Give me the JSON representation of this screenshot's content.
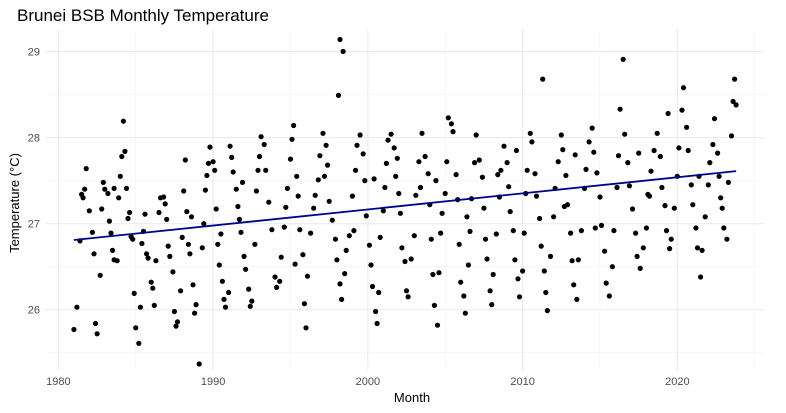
{
  "chart_data": {
    "type": "scatter",
    "title": "Brunei BSB Monthly Temperature",
    "xlabel": "Month",
    "ylabel": "Temperature (°C)",
    "xlim": [
      1979.2,
      2025.6
    ],
    "ylim": [
      25.3,
      29.25
    ],
    "x_ticks": [
      1980,
      1990,
      2000,
      2010,
      2020
    ],
    "x_tick_labels": [
      "1980",
      "1990",
      "2000",
      "2010",
      "2020"
    ],
    "y_ticks": [
      26,
      27,
      28,
      29
    ],
    "y_tick_labels": [
      "26",
      "27",
      "28",
      "29"
    ],
    "grid": true,
    "legend": "none",
    "trend_line": {
      "x": [
        1981.0,
        2023.8
      ],
      "y": [
        26.81,
        27.61
      ],
      "color": "#00008b"
    },
    "point_color": "#000000",
    "points": [
      [
        1981.0,
        25.77
      ],
      [
        1981.2,
        26.03
      ],
      [
        1981.4,
        26.8
      ],
      [
        1981.6,
        27.3
      ],
      [
        1981.7,
        27.4
      ],
      [
        1981.8,
        27.64
      ],
      [
        1982.0,
        27.15
      ],
      [
        1982.2,
        26.9
      ],
      [
        1982.3,
        26.65
      ],
      [
        1982.4,
        25.84
      ],
      [
        1982.5,
        25.72
      ],
      [
        1982.7,
        26.4
      ],
      [
        1982.8,
        27.17
      ],
      [
        1982.9,
        27.48
      ],
      [
        1983.0,
        27.4
      ],
      [
        1983.2,
        27.35
      ],
      [
        1983.3,
        27.03
      ],
      [
        1983.4,
        26.89
      ],
      [
        1983.5,
        26.69
      ],
      [
        1983.6,
        26.58
      ],
      [
        1983.8,
        26.57
      ],
      [
        1983.9,
        27.3
      ],
      [
        1984.0,
        27.55
      ],
      [
        1984.1,
        27.78
      ],
      [
        1984.2,
        28.19
      ],
      [
        1984.3,
        27.84
      ],
      [
        1984.4,
        27.41
      ],
      [
        1984.6,
        27.13
      ],
      [
        1984.7,
        26.85
      ],
      [
        1984.8,
        26.82
      ],
      [
        1984.9,
        26.19
      ],
      [
        1985.0,
        25.79
      ],
      [
        1985.2,
        25.61
      ],
      [
        1985.3,
        26.03
      ],
      [
        1985.4,
        26.77
      ],
      [
        1985.5,
        26.91
      ],
      [
        1985.6,
        27.11
      ],
      [
        1985.7,
        26.65
      ],
      [
        1985.8,
        26.6
      ],
      [
        1986.0,
        26.32
      ],
      [
        1986.1,
        26.25
      ],
      [
        1986.2,
        26.05
      ],
      [
        1986.3,
        26.57
      ],
      [
        1986.5,
        27.13
      ],
      [
        1986.6,
        27.3
      ],
      [
        1986.8,
        27.31
      ],
      [
        1987.0,
        27.05
      ],
      [
        1987.1,
        26.74
      ],
      [
        1987.2,
        26.62
      ],
      [
        1987.4,
        26.44
      ],
      [
        1987.5,
        25.98
      ],
      [
        1987.6,
        25.81
      ],
      [
        1987.7,
        25.86
      ],
      [
        1987.9,
        26.22
      ],
      [
        1988.0,
        26.84
      ],
      [
        1988.1,
        27.38
      ],
      [
        1988.2,
        27.74
      ],
      [
        1988.3,
        27.14
      ],
      [
        1988.4,
        26.76
      ],
      [
        1988.5,
        26.65
      ],
      [
        1988.7,
        26.29
      ],
      [
        1988.8,
        25.96
      ],
      [
        1988.9,
        26.06
      ],
      [
        1989.1,
        25.37
      ],
      [
        1989.3,
        26.72
      ],
      [
        1989.4,
        27.0
      ],
      [
        1989.5,
        27.39
      ],
      [
        1989.6,
        27.56
      ],
      [
        1989.7,
        27.7
      ],
      [
        1989.8,
        27.89
      ],
      [
        1990.0,
        27.72
      ],
      [
        1990.1,
        27.62
      ],
      [
        1990.2,
        27.17
      ],
      [
        1990.3,
        26.76
      ],
      [
        1990.4,
        26.52
      ],
      [
        1990.6,
        26.33
      ],
      [
        1990.7,
        26.12
      ],
      [
        1990.8,
        26.03
      ],
      [
        1991.0,
        26.2
      ],
      [
        1991.1,
        27.9
      ],
      [
        1991.2,
        27.77
      ],
      [
        1991.3,
        27.6
      ],
      [
        1991.5,
        27.4
      ],
      [
        1991.6,
        27.2
      ],
      [
        1991.7,
        27.05
      ],
      [
        1991.8,
        26.9
      ],
      [
        1992.0,
        26.62
      ],
      [
        1992.1,
        26.47
      ],
      [
        1992.3,
        26.24
      ],
      [
        1992.4,
        26.04
      ],
      [
        1992.5,
        26.1
      ],
      [
        1992.7,
        26.76
      ],
      [
        1992.8,
        27.38
      ],
      [
        1992.9,
        27.62
      ],
      [
        1993.0,
        27.78
      ],
      [
        1993.1,
        28.01
      ],
      [
        1993.3,
        27.92
      ],
      [
        1993.4,
        27.62
      ],
      [
        1993.6,
        27.25
      ],
      [
        1993.8,
        26.93
      ],
      [
        1994.0,
        26.38
      ],
      [
        1994.1,
        26.26
      ],
      [
        1994.3,
        26.33
      ],
      [
        1994.4,
        26.61
      ],
      [
        1994.6,
        26.96
      ],
      [
        1994.8,
        27.41
      ],
      [
        1995.0,
        27.75
      ],
      [
        1995.1,
        27.98
      ],
      [
        1995.2,
        28.14
      ],
      [
        1995.4,
        27.55
      ],
      [
        1995.5,
        27.32
      ],
      [
        1995.6,
        26.93
      ],
      [
        1995.8,
        26.64
      ],
      [
        1995.9,
        26.07
      ],
      [
        1996.0,
        25.79
      ],
      [
        1996.1,
        26.39
      ],
      [
        1996.3,
        26.89
      ],
      [
        1996.5,
        27.18
      ],
      [
        1996.6,
        27.33
      ],
      [
        1996.8,
        27.51
      ],
      [
        1996.9,
        27.79
      ],
      [
        1997.1,
        28.05
      ],
      [
        1997.3,
        27.91
      ],
      [
        1997.4,
        27.68
      ],
      [
        1997.5,
        27.26
      ],
      [
        1997.7,
        27.04
      ],
      [
        1997.9,
        26.82
      ],
      [
        1998.0,
        26.58
      ],
      [
        1998.2,
        26.3
      ],
      [
        1998.3,
        26.12
      ],
      [
        1998.5,
        26.42
      ],
      [
        1998.6,
        26.69
      ],
      [
        1998.8,
        26.86
      ],
      [
        1999.0,
        27.32
      ],
      [
        1999.2,
        27.62
      ],
      [
        1999.3,
        27.91
      ],
      [
        1999.5,
        28.03
      ],
      [
        1999.7,
        27.81
      ],
      [
        1999.8,
        27.5
      ],
      [
        1999.9,
        27.09
      ],
      [
        2000.1,
        26.75
      ],
      [
        2000.2,
        26.52
      ],
      [
        2000.3,
        26.27
      ],
      [
        2000.5,
        25.98
      ],
      [
        2000.6,
        25.84
      ],
      [
        2000.7,
        26.2
      ],
      [
        2000.8,
        26.84
      ],
      [
        2001.0,
        27.15
      ],
      [
        2001.1,
        27.42
      ],
      [
        2001.2,
        27.7
      ],
      [
        2001.3,
        27.97
      ],
      [
        2001.5,
        28.04
      ],
      [
        2001.7,
        27.88
      ],
      [
        2001.8,
        27.55
      ],
      [
        2002.0,
        27.35
      ],
      [
        2002.1,
        27.12
      ],
      [
        2002.2,
        26.72
      ],
      [
        2002.4,
        26.56
      ],
      [
        2002.5,
        26.22
      ],
      [
        2002.6,
        26.15
      ],
      [
        2002.8,
        26.59
      ],
      [
        2003.0,
        26.86
      ],
      [
        2003.1,
        27.33
      ],
      [
        2003.3,
        27.72
      ],
      [
        2003.5,
        28.05
      ],
      [
        2003.7,
        27.78
      ],
      [
        2003.9,
        27.58
      ],
      [
        2004.0,
        27.22
      ],
      [
        2004.1,
        26.82
      ],
      [
        2004.2,
        26.41
      ],
      [
        2004.3,
        26.05
      ],
      [
        2004.5,
        25.82
      ],
      [
        2004.6,
        26.43
      ],
      [
        2004.7,
        26.89
      ],
      [
        2004.8,
        27.12
      ],
      [
        2005.0,
        27.35
      ],
      [
        2005.1,
        27.72
      ],
      [
        2005.2,
        28.23
      ],
      [
        2005.4,
        28.16
      ],
      [
        2005.5,
        28.07
      ],
      [
        2005.7,
        27.57
      ],
      [
        2005.8,
        27.28
      ],
      [
        2005.9,
        26.76
      ],
      [
        2006.0,
        26.32
      ],
      [
        2006.2,
        26.16
      ],
      [
        2006.3,
        25.96
      ],
      [
        2006.5,
        26.52
      ],
      [
        2006.6,
        26.91
      ],
      [
        2006.7,
        27.29
      ],
      [
        2006.9,
        27.71
      ],
      [
        2007.0,
        28.03
      ],
      [
        2007.2,
        27.74
      ],
      [
        2007.4,
        27.54
      ],
      [
        2007.5,
        27.18
      ],
      [
        2007.6,
        26.82
      ],
      [
        2007.7,
        26.59
      ],
      [
        2007.9,
        26.22
      ],
      [
        2008.0,
        26.06
      ],
      [
        2008.1,
        26.41
      ],
      [
        2008.3,
        26.88
      ],
      [
        2008.5,
        27.31
      ],
      [
        2008.6,
        27.62
      ],
      [
        2008.8,
        27.9
      ],
      [
        2009.0,
        27.71
      ],
      [
        2009.1,
        27.43
      ],
      [
        2009.2,
        27.14
      ],
      [
        2009.4,
        26.92
      ],
      [
        2009.5,
        26.58
      ],
      [
        2009.7,
        26.36
      ],
      [
        2009.8,
        26.15
      ],
      [
        2010.0,
        26.45
      ],
      [
        2010.1,
        26.89
      ],
      [
        2010.2,
        27.35
      ],
      [
        2010.3,
        27.62
      ],
      [
        2010.5,
        28.05
      ],
      [
        2010.6,
        27.95
      ],
      [
        2010.8,
        27.58
      ],
      [
        2010.9,
        27.32
      ],
      [
        2011.1,
        27.06
      ],
      [
        2011.2,
        26.74
      ],
      [
        2011.4,
        26.45
      ],
      [
        2011.5,
        26.2
      ],
      [
        2011.6,
        25.99
      ],
      [
        2011.8,
        26.62
      ],
      [
        2012.0,
        27.08
      ],
      [
        2012.1,
        27.41
      ],
      [
        2012.3,
        27.72
      ],
      [
        2012.5,
        28.03
      ],
      [
        2012.6,
        27.86
      ],
      [
        2012.8,
        27.56
      ],
      [
        2012.9,
        27.22
      ],
      [
        2013.1,
        26.89
      ],
      [
        2013.2,
        26.57
      ],
      [
        2013.3,
        26.29
      ],
      [
        2013.5,
        26.12
      ],
      [
        2013.6,
        26.58
      ],
      [
        2013.8,
        26.92
      ],
      [
        2014.0,
        27.41
      ],
      [
        2014.1,
        27.63
      ],
      [
        2014.3,
        27.95
      ],
      [
        2014.5,
        28.11
      ],
      [
        2014.6,
        27.83
      ],
      [
        2014.8,
        27.59
      ],
      [
        2015.0,
        27.31
      ],
      [
        2015.1,
        26.98
      ],
      [
        2015.3,
        26.68
      ],
      [
        2015.4,
        26.31
      ],
      [
        2015.6,
        26.16
      ],
      [
        2015.8,
        26.5
      ],
      [
        2015.9,
        26.92
      ],
      [
        2016.1,
        27.42
      ],
      [
        2016.2,
        27.79
      ],
      [
        2016.3,
        28.33
      ],
      [
        2016.5,
        28.91
      ],
      [
        2016.6,
        28.04
      ],
      [
        2016.8,
        27.71
      ],
      [
        2016.9,
        27.44
      ],
      [
        2017.1,
        27.17
      ],
      [
        2017.3,
        26.89
      ],
      [
        2017.4,
        26.62
      ],
      [
        2017.6,
        26.48
      ],
      [
        2017.8,
        26.72
      ],
      [
        2018.0,
        26.95
      ],
      [
        2018.1,
        27.34
      ],
      [
        2018.3,
        27.61
      ],
      [
        2018.5,
        27.85
      ],
      [
        2018.7,
        28.05
      ],
      [
        2018.9,
        27.78
      ],
      [
        2019.0,
        27.42
      ],
      [
        2019.2,
        27.21
      ],
      [
        2019.3,
        26.92
      ],
      [
        2019.5,
        26.71
      ],
      [
        2019.6,
        26.82
      ],
      [
        2019.8,
        27.18
      ],
      [
        2020.0,
        27.55
      ],
      [
        2020.1,
        27.88
      ],
      [
        2020.3,
        28.32
      ],
      [
        2020.4,
        28.58
      ],
      [
        2020.6,
        28.12
      ],
      [
        2020.7,
        27.85
      ],
      [
        2020.9,
        27.45
      ],
      [
        2021.0,
        27.22
      ],
      [
        2021.2,
        26.95
      ],
      [
        2021.3,
        26.72
      ],
      [
        2021.5,
        26.38
      ],
      [
        2021.6,
        26.69
      ],
      [
        2021.8,
        27.08
      ],
      [
        2022.0,
        27.45
      ],
      [
        2022.1,
        27.71
      ],
      [
        2022.3,
        27.92
      ],
      [
        2022.4,
        28.22
      ],
      [
        2022.6,
        27.82
      ],
      [
        2022.7,
        27.55
      ],
      [
        2022.9,
        27.18
      ],
      [
        2023.0,
        26.95
      ],
      [
        2023.2,
        26.82
      ],
      [
        2023.3,
        27.48
      ],
      [
        2023.5,
        28.02
      ],
      [
        2023.6,
        28.42
      ],
      [
        2023.7,
        28.68
      ],
      [
        2023.8,
        28.38
      ],
      [
        1983.6,
        27.41
      ],
      [
        1986.9,
        27.23
      ],
      [
        1988.6,
        27.08
      ],
      [
        1991.9,
        27.48
      ],
      [
        1994.7,
        27.19
      ],
      [
        1997.2,
        27.55
      ],
      [
        1999.1,
        26.92
      ],
      [
        2001.9,
        27.76
      ],
      [
        2004.4,
        27.5
      ],
      [
        2006.4,
        27.08
      ],
      [
        2009.6,
        27.85
      ],
      [
        2012.7,
        27.2
      ],
      [
        2014.7,
        26.95
      ],
      [
        2017.5,
        27.82
      ],
      [
        2019.4,
        28.28
      ],
      [
        2021.4,
        27.55
      ],
      [
        2022.8,
        27.3
      ],
      [
        1981.5,
        27.34
      ],
      [
        1984.5,
        27.06
      ],
      [
        1990.5,
        26.88
      ],
      [
        1995.3,
        26.53
      ],
      [
        2000.4,
        27.52
      ],
      [
        2003.4,
        27.42
      ],
      [
        2008.4,
        27.57
      ],
      [
        2013.4,
        27.8
      ],
      [
        2018.2,
        27.32
      ],
      [
        1998.2,
        29.14
      ],
      [
        1998.4,
        29.0
      ],
      [
        1998.1,
        28.49
      ],
      [
        2011.3,
        28.68
      ]
    ]
  }
}
